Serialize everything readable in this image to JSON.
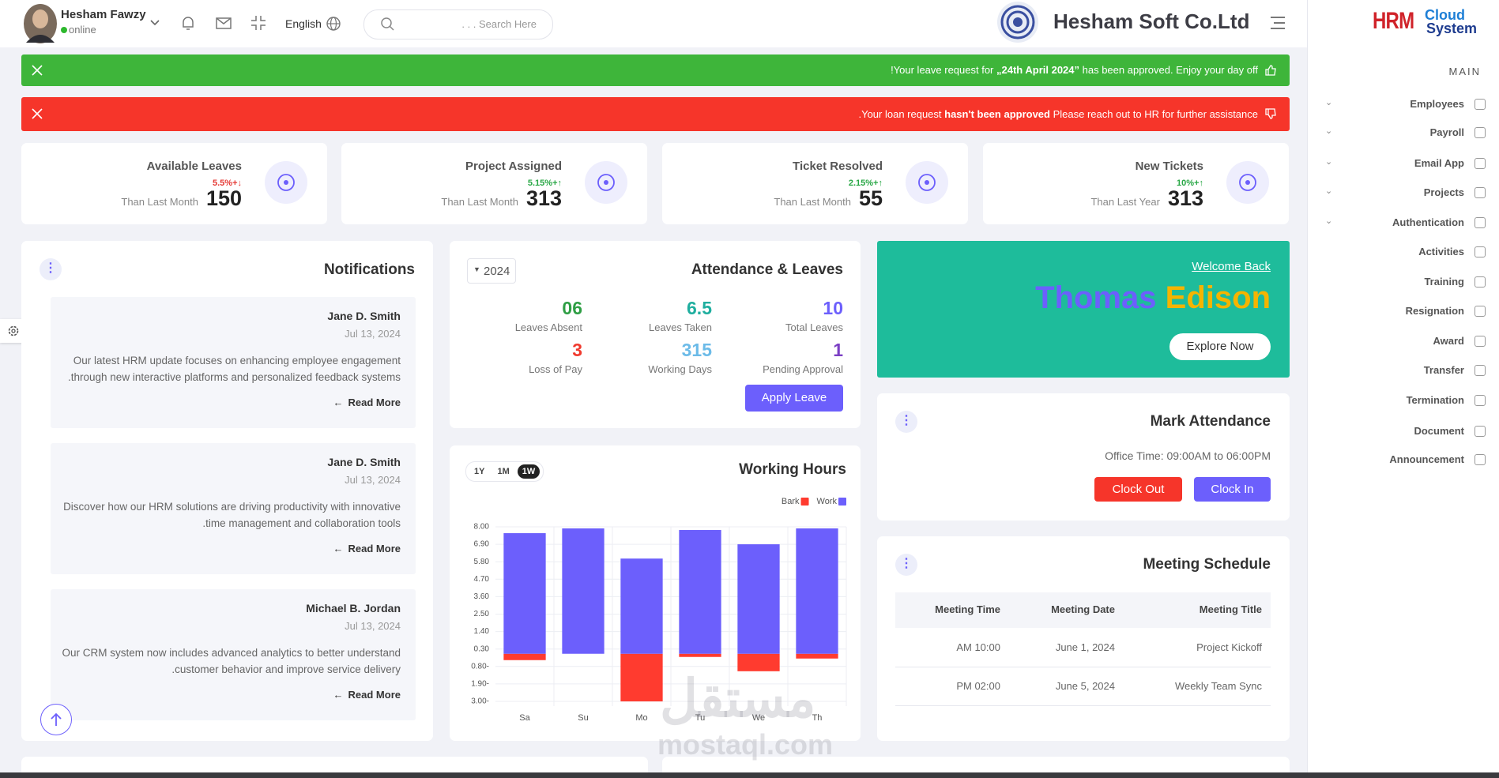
{
  "header": {
    "user_name": "Hesham Fawzy",
    "status": "online",
    "language": "English",
    "search_placeholder": ". . . Search Here",
    "company": "Hesham Soft Co.Ltd"
  },
  "alerts": {
    "success": [
      "!Your leave request for ",
      "„24th April 2024”",
      " has been approved. Enjoy your day off"
    ],
    "error": [
      ".Your loan request ",
      "hasn't been approved",
      " Please reach out to HR for further assistance"
    ]
  },
  "stats": [
    {
      "title": "Available Leaves",
      "change": "5.5%+↓",
      "change_color": "#e53935",
      "caption": "Than Last Month",
      "value": 150
    },
    {
      "title": "Project Assigned",
      "change": "5.15%+↑",
      "change_color": "#28a745",
      "caption": "Than Last Month",
      "value": 313
    },
    {
      "title": "Ticket Resolved",
      "change": "2.15%+↑",
      "change_color": "#28a745",
      "caption": "Than Last Month",
      "value": 55
    },
    {
      "title": "New Tickets",
      "change": "10%+↑",
      "change_color": "#28a745",
      "caption": "Than Last Year",
      "value": 313
    }
  ],
  "notifications": {
    "title": "Notifications",
    "items": [
      {
        "author": "Jane D. Smith",
        "date": "Jul 13, 2024",
        "text": "Our latest HRM update focuses on enhancing employee engagement .through new interactive platforms and personalized feedback systems",
        "link": "Read More"
      },
      {
        "author": "Jane D. Smith",
        "date": "Jul 13, 2024",
        "text": "Discover how our HRM solutions are driving productivity with innovative .time management and collaboration tools",
        "link": "Read More"
      },
      {
        "author": "Michael B. Jordan",
        "date": "Jul 13, 2024",
        "text": "Our CRM system now includes advanced analytics to better understand .customer behavior and improve service delivery",
        "link": "Read More"
      }
    ]
  },
  "attendance": {
    "year": "2024",
    "title": "Attendance & Leaves",
    "stats": [
      {
        "value": "06",
        "label": "Leaves Absent",
        "color": "#2e9e44"
      },
      {
        "value": 6.5,
        "label": "Leaves Taken",
        "color": "#1fae9f"
      },
      {
        "value": 10,
        "label": "Total Leaves",
        "color": "#6c5ffc"
      },
      {
        "value": 3,
        "label": "Loss of Pay",
        "color": "#f03a2e"
      },
      {
        "value": 315,
        "label": "Working Days",
        "color": "#6cbbe8"
      },
      {
        "value": 1,
        "label": "Pending Approval",
        "color": "#7b3fc4"
      }
    ],
    "button": "Apply Leave"
  },
  "working_hours": {
    "ranges": [
      "1Y",
      "1M",
      "1W"
    ]
  },
  "welcome": {
    "greeting": "Welcome Back",
    "first_name": "Thomas",
    "last_name": "Edison",
    "button": "Explore Now"
  },
  "mark_attendance": {
    "title": "Mark Attendance",
    "office_time": "Office Time: 09:00AM to 06:00PM",
    "clock_out": "Clock Out",
    "clock_in": "Clock In"
  },
  "meetings": {
    "title": "Meeting Schedule",
    "headers": [
      "Meeting Time",
      "Meeting Date",
      "Meeting Title"
    ],
    "rows": [
      [
        "AM 10:00",
        "June 1, 2024",
        "Project Kickoff"
      ],
      [
        "PM 02:00",
        "June 5, 2024",
        "Weekly Team Sync"
      ]
    ]
  },
  "sidebar": {
    "logo": [
      "HRM",
      "Cloud",
      "System"
    ],
    "section": "MAIN",
    "items": [
      "Employees",
      "Payroll",
      "Email App",
      "Projects",
      "Authentication",
      "Activities",
      "Training",
      "Resignation",
      "Award",
      "Transfer",
      "Termination",
      "Document",
      "Announcement"
    ]
  },
  "watermark": [
    "مستقل",
    "mostaql.com"
  ],
  "chart_data": {
    "type": "bar",
    "title": "Working Hours",
    "categories": [
      "Sa",
      "Su",
      "Mo",
      "Tu",
      "We",
      "Th"
    ],
    "series": [
      {
        "name": "Bark",
        "color": "#ff3b2f",
        "values": [
          -0.4,
          0,
          -3.0,
          -0.2,
          -1.1,
          -0.3
        ]
      },
      {
        "name": "Work",
        "color": "#6c5ffc",
        "values": [
          7.6,
          7.9,
          6.0,
          7.8,
          6.9,
          7.9
        ]
      }
    ],
    "ylim": [
      -3,
      8
    ],
    "yticks": [
      {
        "value": 8,
        "label": "8.00"
      },
      {
        "value": 6.9,
        "label": "6.90"
      },
      {
        "value": 5.8,
        "label": "5.80"
      },
      {
        "value": 4.7,
        "label": "4.70"
      },
      {
        "value": 3.6,
        "label": "3.60"
      },
      {
        "value": 2.5,
        "label": "2.50"
      },
      {
        "value": 1.4,
        "label": "1.40"
      },
      {
        "value": 0.3,
        "label": "0.30"
      },
      {
        "value": -0.8,
        "label": "0.80-"
      },
      {
        "value": -1.9,
        "label": "1.90-"
      },
      {
        "value": -3,
        "label": "3.00-"
      }
    ],
    "grid": true
  }
}
